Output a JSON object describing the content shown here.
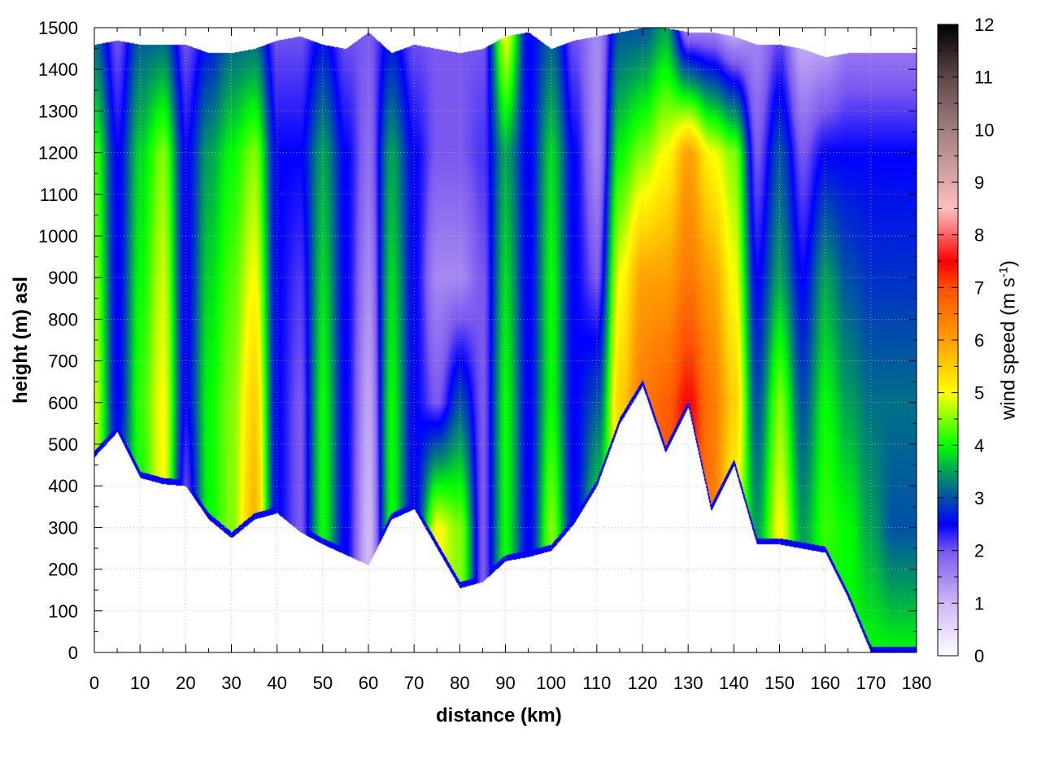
{
  "chart_data": {
    "type": "heatmap",
    "title": "",
    "xlabel": "distance (km)",
    "ylabel": "height (m) asl",
    "colorbar_label": "wind speed (m s",
    "colorbar_label_sup": "-1",
    "colorbar_label_end": ")",
    "xlim": [
      0,
      180
    ],
    "ylim": [
      0,
      1500
    ],
    "clim": [
      0,
      12
    ],
    "grid": true,
    "xticks": [
      0,
      10,
      20,
      30,
      40,
      50,
      60,
      70,
      80,
      90,
      100,
      110,
      120,
      130,
      140,
      150,
      160,
      170,
      180
    ],
    "yticks": [
      0,
      100,
      200,
      300,
      400,
      500,
      600,
      700,
      800,
      900,
      1000,
      1100,
      1200,
      1300,
      1400,
      1500
    ],
    "cticks": [
      0,
      1,
      2,
      3,
      4,
      5,
      6,
      7,
      8,
      9,
      10,
      11,
      12
    ],
    "colormap": [
      [
        0,
        "#ffffff"
      ],
      [
        1,
        "#d0b8f4"
      ],
      [
        2,
        "#7a58f0"
      ],
      [
        2.5,
        "#0000ff"
      ],
      [
        3,
        "#0050a8"
      ],
      [
        3.5,
        "#00a058"
      ],
      [
        4,
        "#00ff00"
      ],
      [
        5,
        "#ffff00"
      ],
      [
        6,
        "#ffa000"
      ],
      [
        7,
        "#ff5000"
      ],
      [
        7.5,
        "#ff0000"
      ],
      [
        8.5,
        "#ffc0c0"
      ],
      [
        10,
        "#a08080"
      ],
      [
        11,
        "#604848"
      ],
      [
        12,
        "#000000"
      ]
    ],
    "x": [
      0,
      5,
      10,
      15,
      20,
      25,
      30,
      35,
      40,
      45,
      50,
      55,
      60,
      65,
      70,
      75,
      80,
      85,
      90,
      95,
      100,
      105,
      110,
      115,
      120,
      125,
      130,
      135,
      140,
      145,
      150,
      155,
      160,
      165,
      170,
      175,
      180
    ],
    "terrain_height": [
      470,
      530,
      420,
      405,
      400,
      320,
      275,
      320,
      335,
      290,
      260,
      235,
      210,
      320,
      345,
      250,
      155,
      170,
      220,
      230,
      245,
      310,
      400,
      550,
      640,
      480,
      590,
      340,
      450,
      260,
      260,
      250,
      240,
      130,
      0,
      0,
      0
    ],
    "top_height": [
      1460,
      1470,
      1460,
      1460,
      1460,
      1440,
      1440,
      1450,
      1470,
      1480,
      1460,
      1450,
      1490,
      1440,
      1460,
      1450,
      1440,
      1450,
      1480,
      1490,
      1450,
      1470,
      1480,
      1490,
      1500,
      1500,
      1490,
      1490,
      1480,
      1460,
      1460,
      1450,
      1430,
      1440,
      1440,
      1440,
      1440
    ],
    "profile_heights": [
      0,
      300,
      600,
      900,
      1200,
      1500
    ],
    "wind_speed": [
      [
        4.5,
        4.5,
        4.8,
        4.5,
        4.2,
        3
      ],
      [
        3,
        3,
        2.5,
        2.5,
        2.5,
        2
      ],
      [
        4,
        4,
        4.2,
        4,
        3.8,
        3
      ],
      [
        5,
        5,
        5,
        4.8,
        4.5,
        3
      ],
      [
        2,
        2,
        2.5,
        2.5,
        2.5,
        2
      ],
      [
        4,
        4,
        4,
        3.8,
        3.5,
        2.5
      ],
      [
        4.5,
        4.5,
        4.5,
        4.3,
        4,
        3
      ],
      [
        5.5,
        5.8,
        5.5,
        5,
        4.5,
        3
      ],
      [
        2.5,
        2.5,
        2.5,
        2.5,
        2.5,
        2
      ],
      [
        2,
        2,
        2,
        2.2,
        2.5,
        2
      ],
      [
        4,
        4,
        4,
        3.8,
        3.5,
        2.5
      ],
      [
        2.5,
        2.5,
        2.5,
        2.5,
        2.5,
        2
      ],
      [
        1,
        1,
        1.2,
        1.5,
        1.8,
        2
      ],
      [
        4,
        4,
        4,
        3.8,
        3.5,
        2.5
      ],
      [
        2.5,
        2.5,
        2.5,
        2.5,
        2.5,
        2
      ],
      [
        5,
        5,
        2,
        1.5,
        2,
        2
      ],
      [
        4.5,
        4.5,
        3,
        1.5,
        2,
        2
      ],
      [
        2,
        2,
        2,
        2,
        2.2,
        2
      ],
      [
        4,
        4,
        4,
        3.8,
        3.5,
        5
      ],
      [
        2.5,
        2.5,
        2.5,
        2.5,
        2.5,
        2.5
      ],
      [
        4.5,
        4.5,
        4,
        4,
        3.8,
        3
      ],
      [
        2.5,
        2.5,
        2.5,
        2.5,
        2.5,
        2
      ],
      [
        4,
        4,
        3,
        2,
        1.5,
        1.5
      ],
      [
        5,
        5,
        5.5,
        5,
        4,
        3
      ],
      [
        6,
        6,
        6.5,
        6,
        4.5,
        3
      ],
      [
        7,
        7,
        6.8,
        6,
        5,
        3.5
      ],
      [
        7.5,
        7.5,
        7.5,
        6.5,
        6,
        1.5
      ],
      [
        6.5,
        6.5,
        6.5,
        6,
        5,
        1.5
      ],
      [
        5,
        5,
        5.5,
        5,
        4.5,
        1
      ],
      [
        3.5,
        3.5,
        3,
        2.5,
        2,
        1.5
      ],
      [
        5,
        5,
        4.5,
        3.5,
        3,
        2
      ],
      [
        3.5,
        3.5,
        3,
        2.5,
        2,
        1
      ],
      [
        4,
        4.2,
        4,
        3.5,
        2.5,
        1
      ],
      [
        4,
        4,
        3.5,
        3,
        2.5,
        1.5
      ],
      [
        4,
        3.5,
        3.2,
        2.8,
        2.5,
        1.5
      ],
      [
        4,
        3,
        3.2,
        2.8,
        2.5,
        1.5
      ],
      [
        4,
        3,
        3.2,
        2.8,
        2.5,
        1.5
      ]
    ]
  }
}
